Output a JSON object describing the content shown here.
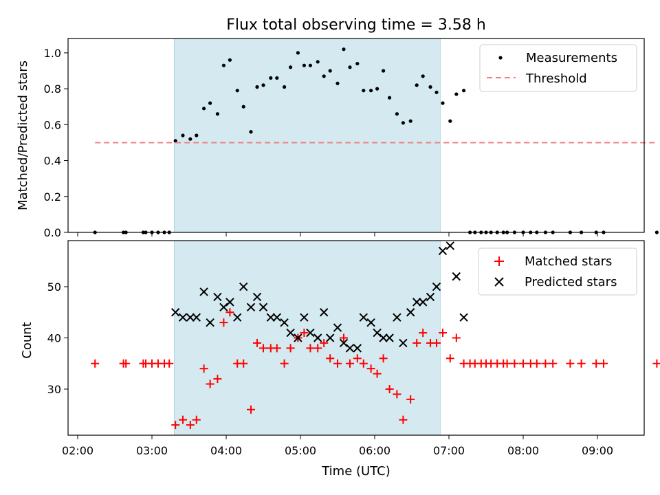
{
  "figure": {
    "title": "Flux total observing time = 3.58 h",
    "xlabel": "Time (UTC)",
    "x_ticks": [
      "02:00",
      "03:00",
      "04:00",
      "05:00",
      "06:00",
      "07:00",
      "08:00",
      "09:00"
    ],
    "observing_window": {
      "start": "03:18",
      "end": "06:53",
      "color": "#d4eaf0"
    }
  },
  "chart_data": [
    {
      "type": "scatter",
      "name": "top-panel",
      "ylabel": "Matched/Predicted stars",
      "ylim": [
        0,
        1.08
      ],
      "yticks": [
        "0.0",
        "0.2",
        "0.4",
        "0.6",
        "0.8",
        "1.0"
      ],
      "legend": {
        "position": "top-right"
      },
      "series": [
        {
          "name": "Measurements",
          "style": "dot",
          "color": "#000000",
          "points": [
            [
              "02:14",
              0.0
            ],
            [
              "02:37",
              0.0
            ],
            [
              "02:39",
              0.0
            ],
            [
              "02:53",
              0.0
            ],
            [
              "02:55",
              0.0
            ],
            [
              "03:00",
              0.0
            ],
            [
              "03:05",
              0.0
            ],
            [
              "03:10",
              0.0
            ],
            [
              "03:14",
              0.0
            ],
            [
              "03:19",
              0.51
            ],
            [
              "03:25",
              0.54
            ],
            [
              "03:31",
              0.52
            ],
            [
              "03:36",
              0.54
            ],
            [
              "03:42",
              0.69
            ],
            [
              "03:47",
              0.72
            ],
            [
              "03:53",
              0.66
            ],
            [
              "03:58",
              0.93
            ],
            [
              "04:03",
              0.96
            ],
            [
              "04:09",
              0.79
            ],
            [
              "04:14",
              0.7
            ],
            [
              "04:20",
              0.56
            ],
            [
              "04:25",
              0.81
            ],
            [
              "04:30",
              0.82
            ],
            [
              "04:36",
              0.86
            ],
            [
              "04:41",
              0.86
            ],
            [
              "04:47",
              0.81
            ],
            [
              "04:52",
              0.92
            ],
            [
              "04:58",
              1.0
            ],
            [
              "05:03",
              0.93
            ],
            [
              "05:08",
              0.93
            ],
            [
              "05:14",
              0.95
            ],
            [
              "05:19",
              0.87
            ],
            [
              "05:24",
              0.9
            ],
            [
              "05:30",
              0.83
            ],
            [
              "05:35",
              1.02
            ],
            [
              "05:40",
              0.92
            ],
            [
              "05:46",
              0.94
            ],
            [
              "05:51",
              0.79
            ],
            [
              "05:57",
              0.79
            ],
            [
              "06:02",
              0.8
            ],
            [
              "06:07",
              0.9
            ],
            [
              "06:12",
              0.75
            ],
            [
              "06:18",
              0.66
            ],
            [
              "06:23",
              0.61
            ],
            [
              "06:29",
              0.62
            ],
            [
              "06:34",
              0.82
            ],
            [
              "06:39",
              0.87
            ],
            [
              "06:45",
              0.81
            ],
            [
              "06:50",
              0.78
            ],
            [
              "06:55",
              0.72
            ],
            [
              "07:01",
              0.62
            ],
            [
              "07:06",
              0.77
            ],
            [
              "07:12",
              0.79
            ],
            [
              "07:17",
              0.0
            ],
            [
              "07:21",
              0.0
            ],
            [
              "07:26",
              0.0
            ],
            [
              "07:30",
              0.0
            ],
            [
              "07:34",
              0.0
            ],
            [
              "07:39",
              0.0
            ],
            [
              "07:44",
              0.0
            ],
            [
              "07:47",
              0.0
            ],
            [
              "07:53",
              0.0
            ],
            [
              "08:00",
              0.0
            ],
            [
              "08:06",
              0.0
            ],
            [
              "08:11",
              0.0
            ],
            [
              "08:18",
              0.0
            ],
            [
              "08:24",
              0.0
            ],
            [
              "08:38",
              0.0
            ],
            [
              "08:47",
              0.0
            ],
            [
              "08:59",
              0.0
            ],
            [
              "09:05",
              0.0
            ],
            [
              "09:48",
              0.0
            ]
          ]
        },
        {
          "name": "Threshold",
          "style": "dashed-line",
          "color": "#f08080",
          "points": [
            [
              "02:14",
              0.5
            ],
            [
              "09:48",
              0.5
            ]
          ]
        }
      ]
    },
    {
      "type": "scatter",
      "name": "bottom-panel",
      "ylabel": "Count",
      "ylim": [
        21,
        59
      ],
      "yticks": [
        "30",
        "40",
        "50"
      ],
      "legend": {
        "position": "top-right"
      },
      "series": [
        {
          "name": "Matched stars",
          "marker": "+",
          "color": "#ff0000",
          "points": [
            [
              "02:14",
              35
            ],
            [
              "02:37",
              35
            ],
            [
              "02:39",
              35
            ],
            [
              "02:53",
              35
            ],
            [
              "02:55",
              35
            ],
            [
              "03:00",
              35
            ],
            [
              "03:05",
              35
            ],
            [
              "03:10",
              35
            ],
            [
              "03:14",
              35
            ],
            [
              "03:19",
              23
            ],
            [
              "03:25",
              24
            ],
            [
              "03:31",
              23
            ],
            [
              "03:36",
              24
            ],
            [
              "03:42",
              34
            ],
            [
              "03:47",
              31
            ],
            [
              "03:53",
              32
            ],
            [
              "03:58",
              43
            ],
            [
              "04:03",
              45
            ],
            [
              "04:09",
              35
            ],
            [
              "04:14",
              35
            ],
            [
              "04:20",
              26
            ],
            [
              "04:25",
              39
            ],
            [
              "04:30",
              38
            ],
            [
              "04:36",
              38
            ],
            [
              "04:41",
              38
            ],
            [
              "04:47",
              35
            ],
            [
              "04:52",
              38
            ],
            [
              "04:58",
              40
            ],
            [
              "05:03",
              41
            ],
            [
              "05:08",
              38
            ],
            [
              "05:14",
              38
            ],
            [
              "05:19",
              39
            ],
            [
              "05:24",
              36
            ],
            [
              "05:30",
              35
            ],
            [
              "05:35",
              40
            ],
            [
              "05:40",
              35
            ],
            [
              "05:46",
              36
            ],
            [
              "05:51",
              35
            ],
            [
              "05:57",
              34
            ],
            [
              "06:02",
              33
            ],
            [
              "06:07",
              36
            ],
            [
              "06:12",
              30
            ],
            [
              "06:18",
              29
            ],
            [
              "06:23",
              24
            ],
            [
              "06:29",
              28
            ],
            [
              "06:34",
              39
            ],
            [
              "06:39",
              41
            ],
            [
              "06:45",
              39
            ],
            [
              "06:50",
              39
            ],
            [
              "06:55",
              41
            ],
            [
              "07:01",
              36
            ],
            [
              "07:06",
              40
            ],
            [
              "07:12",
              35
            ],
            [
              "07:17",
              35
            ],
            [
              "07:21",
              35
            ],
            [
              "07:26",
              35
            ],
            [
              "07:30",
              35
            ],
            [
              "07:34",
              35
            ],
            [
              "07:39",
              35
            ],
            [
              "07:44",
              35
            ],
            [
              "07:47",
              35
            ],
            [
              "07:53",
              35
            ],
            [
              "08:00",
              35
            ],
            [
              "08:06",
              35
            ],
            [
              "08:11",
              35
            ],
            [
              "08:18",
              35
            ],
            [
              "08:24",
              35
            ],
            [
              "08:38",
              35
            ],
            [
              "08:47",
              35
            ],
            [
              "08:59",
              35
            ],
            [
              "09:05",
              35
            ],
            [
              "09:48",
              35
            ]
          ]
        },
        {
          "name": "Predicted stars",
          "marker": "x",
          "color": "#000000",
          "points": [
            [
              "03:19",
              45
            ],
            [
              "03:25",
              44
            ],
            [
              "03:31",
              44
            ],
            [
              "03:36",
              44
            ],
            [
              "03:42",
              49
            ],
            [
              "03:47",
              43
            ],
            [
              "03:53",
              48
            ],
            [
              "03:58",
              46
            ],
            [
              "04:03",
              47
            ],
            [
              "04:09",
              44
            ],
            [
              "04:14",
              50
            ],
            [
              "04:20",
              46
            ],
            [
              "04:25",
              48
            ],
            [
              "04:30",
              46
            ],
            [
              "04:36",
              44
            ],
            [
              "04:41",
              44
            ],
            [
              "04:47",
              43
            ],
            [
              "04:52",
              41
            ],
            [
              "04:58",
              40
            ],
            [
              "05:03",
              44
            ],
            [
              "05:08",
              41
            ],
            [
              "05:14",
              40
            ],
            [
              "05:19",
              45
            ],
            [
              "05:24",
              40
            ],
            [
              "05:30",
              42
            ],
            [
              "05:35",
              39
            ],
            [
              "05:40",
              38
            ],
            [
              "05:46",
              38
            ],
            [
              "05:51",
              44
            ],
            [
              "05:57",
              43
            ],
            [
              "06:02",
              41
            ],
            [
              "06:07",
              40
            ],
            [
              "06:12",
              40
            ],
            [
              "06:18",
              44
            ],
            [
              "06:23",
              39
            ],
            [
              "06:29",
              45
            ],
            [
              "06:34",
              47
            ],
            [
              "06:39",
              47
            ],
            [
              "06:45",
              48
            ],
            [
              "06:50",
              50
            ],
            [
              "06:55",
              57
            ],
            [
              "07:01",
              58
            ],
            [
              "07:06",
              52
            ],
            [
              "07:12",
              44
            ]
          ]
        }
      ]
    }
  ]
}
